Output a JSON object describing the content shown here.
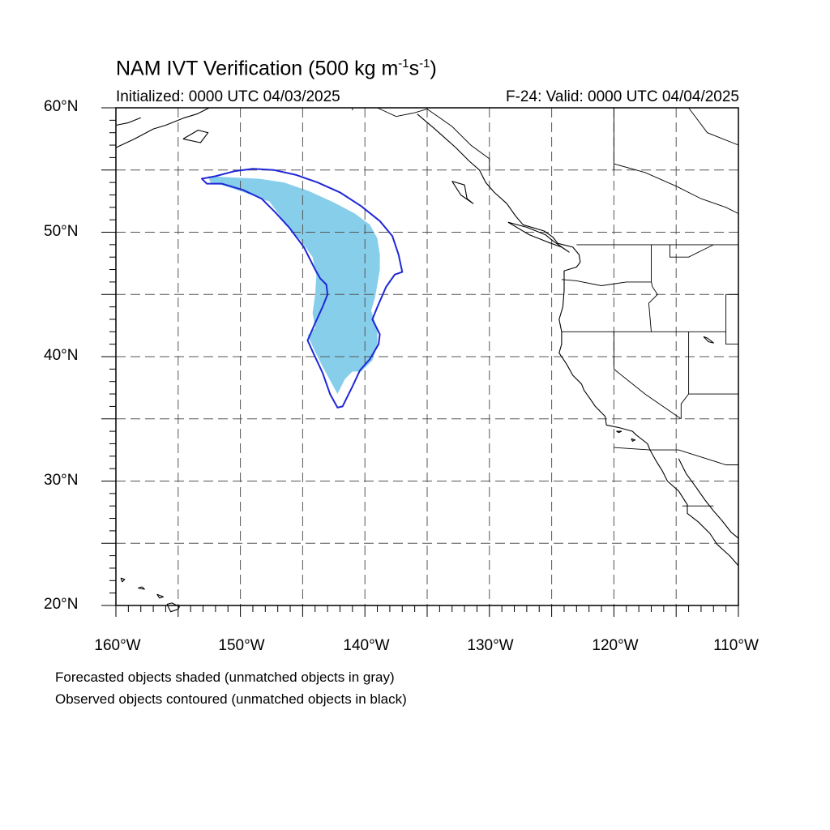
{
  "title": {
    "main": "NAM IVT Verification (500 kg m",
    "sup1": "-1",
    "mid": "s",
    "sup2": "-1",
    "end": ")"
  },
  "subtitle_left": "Initialized: 0000 UTC 04/03/2025",
  "subtitle_right": "F-24: Valid: 0000 UTC 04/04/2025",
  "lat_labels": [
    "60°N",
    "50°N",
    "40°N",
    "30°N",
    "20°N"
  ],
  "lon_labels": [
    "160°W",
    "150°W",
    "140°W",
    "130°W",
    "120°W",
    "110°W"
  ],
  "footnote_1": "Forecasted objects shaded (unmatched objects in gray)",
  "footnote_2": "Observed objects contoured (unmatched objects in black)",
  "map_extent": {
    "lon_min": -160,
    "lon_max": -110,
    "lat_min": 20,
    "lat_max": 60
  },
  "colors": {
    "forecast_fill": "#87ceeb",
    "observed_contour": "#1f27d6",
    "coastline": "#000000",
    "grid": "#555555"
  },
  "forecast_object": {
    "label": "",
    "outline_lonlat": [
      [
        -152.6,
        54.5
      ],
      [
        -150.5,
        54.4
      ],
      [
        -148.5,
        54.3
      ],
      [
        -146.5,
        54.0
      ],
      [
        -144.5,
        53.3
      ],
      [
        -142.5,
        52.4
      ],
      [
        -140.8,
        51.5
      ],
      [
        -139.6,
        50.6
      ],
      [
        -139.0,
        49.5
      ],
      [
        -138.8,
        48.2
      ],
      [
        -138.8,
        47.0
      ],
      [
        -139.0,
        45.8
      ],
      [
        -139.2,
        44.7
      ],
      [
        -139.5,
        43.7
      ],
      [
        -139.0,
        42.2
      ],
      [
        -139.0,
        40.9
      ],
      [
        -139.4,
        39.7
      ],
      [
        -140.3,
        38.8
      ],
      [
        -141.0,
        38.8
      ],
      [
        -141.6,
        38.2
      ],
      [
        -142.2,
        37.0
      ],
      [
        -142.8,
        38.1
      ],
      [
        -143.5,
        39.4
      ],
      [
        -144.0,
        40.4
      ],
      [
        -144.6,
        41.7
      ],
      [
        -144.0,
        42.3
      ],
      [
        -144.2,
        43.5
      ],
      [
        -144.0,
        45.0
      ],
      [
        -143.9,
        46.5
      ],
      [
        -144.2,
        48.0
      ],
      [
        -145.2,
        49.4
      ],
      [
        -146.3,
        50.6
      ],
      [
        -147.1,
        51.7
      ],
      [
        -147.7,
        52.5
      ],
      [
        -148.2,
        52.6
      ],
      [
        -148.8,
        52.9
      ],
      [
        -150.0,
        53.3
      ],
      [
        -151.5,
        53.8
      ],
      [
        -152.4,
        54.0
      ]
    ]
  },
  "observed_object": {
    "label": "",
    "outline_lonlat": [
      [
        -153.1,
        54.3
      ],
      [
        -152.0,
        54.5
      ],
      [
        -150.5,
        54.9
      ],
      [
        -149.0,
        55.1
      ],
      [
        -147.3,
        55.0
      ],
      [
        -145.5,
        54.6
      ],
      [
        -143.8,
        54.0
      ],
      [
        -142.0,
        53.2
      ],
      [
        -140.3,
        52.1
      ],
      [
        -138.8,
        50.9
      ],
      [
        -137.8,
        49.7
      ],
      [
        -137.3,
        48.2
      ],
      [
        -137.0,
        46.8
      ],
      [
        -137.6,
        46.6
      ],
      [
        -138.3,
        45.6
      ],
      [
        -139.0,
        44.0
      ],
      [
        -139.4,
        43.0
      ],
      [
        -138.8,
        41.8
      ],
      [
        -138.9,
        41.0
      ],
      [
        -139.6,
        39.8
      ],
      [
        -140.4,
        38.9
      ],
      [
        -141.0,
        37.6
      ],
      [
        -141.8,
        36.0
      ],
      [
        -142.2,
        35.9
      ],
      [
        -142.8,
        37.0
      ],
      [
        -143.4,
        38.7
      ],
      [
        -144.1,
        40.2
      ],
      [
        -144.6,
        41.3
      ],
      [
        -144.0,
        42.7
      ],
      [
        -143.4,
        44.0
      ],
      [
        -143.0,
        45.0
      ],
      [
        -143.1,
        45.8
      ],
      [
        -143.6,
        46.3
      ],
      [
        -144.0,
        47.0
      ],
      [
        -144.9,
        48.8
      ],
      [
        -146.1,
        50.4
      ],
      [
        -147.2,
        51.6
      ],
      [
        -148.3,
        52.7
      ],
      [
        -149.8,
        53.4
      ],
      [
        -151.5,
        53.9
      ],
      [
        -152.7,
        53.9
      ]
    ]
  },
  "coastlines": [
    [
      [
        -135.8,
        59.5
      ],
      [
        -135.2,
        59.0
      ],
      [
        -134.5,
        58.4
      ],
      [
        -133.6,
        57.6
      ],
      [
        -132.7,
        56.8
      ],
      [
        -131.6,
        55.7
      ],
      [
        -130.8,
        55.0
      ],
      [
        -130.3,
        54.0
      ],
      [
        -129.6,
        53.2
      ],
      [
        -128.6,
        52.3
      ],
      [
        -127.9,
        51.3
      ],
      [
        -127.3,
        50.6
      ],
      [
        -125.6,
        50.1
      ],
      [
        -124.9,
        49.6
      ],
      [
        -124.5,
        49.1
      ],
      [
        -123.3,
        48.8
      ],
      [
        -122.8,
        48.2
      ],
      [
        -122.7,
        47.6
      ],
      [
        -123.0,
        47.2
      ],
      [
        -124.0,
        46.9
      ],
      [
        -124.0,
        46.2
      ],
      [
        -124.0,
        45.3
      ],
      [
        -124.1,
        44.0
      ],
      [
        -124.4,
        43.0
      ],
      [
        -124.2,
        42.0
      ],
      [
        -124.2,
        41.0
      ],
      [
        -124.4,
        40.3
      ],
      [
        -123.8,
        39.4
      ],
      [
        -123.3,
        38.5
      ],
      [
        -122.6,
        37.8
      ],
      [
        -122.4,
        37.3
      ],
      [
        -121.9,
        36.6
      ],
      [
        -121.5,
        36.0
      ],
      [
        -120.7,
        35.2
      ],
      [
        -120.6,
        34.5
      ],
      [
        -119.6,
        34.3
      ],
      [
        -118.5,
        34.0
      ],
      [
        -118.2,
        33.7
      ],
      [
        -117.3,
        33.0
      ],
      [
        -117.1,
        32.5
      ],
      [
        -116.6,
        31.6
      ],
      [
        -116.1,
        30.8
      ],
      [
        -115.7,
        30.0
      ],
      [
        -114.8,
        29.2
      ],
      [
        -114.1,
        28.1
      ],
      [
        -114.1,
        27.4
      ],
      [
        -113.2,
        26.7
      ],
      [
        -112.3,
        25.8
      ],
      [
        -111.7,
        24.9
      ],
      [
        -110.7,
        24.0
      ],
      [
        -110.0,
        23.2
      ]
    ],
    [
      [
        -114.8,
        31.8
      ],
      [
        -114.2,
        30.6
      ],
      [
        -113.4,
        29.5
      ],
      [
        -112.7,
        28.5
      ],
      [
        -112.0,
        27.6
      ],
      [
        -111.3,
        26.8
      ],
      [
        -110.6,
        25.9
      ],
      [
        -110.0,
        25.4
      ]
    ],
    [
      [
        -155.9,
        20.1
      ],
      [
        -155.6,
        19.5
      ],
      [
        -155.0,
        19.7
      ],
      [
        -154.9,
        19.9
      ],
      [
        -155.5,
        20.2
      ],
      [
        -155.9,
        20.1
      ]
    ],
    [
      [
        -156.7,
        20.9
      ],
      [
        -156.2,
        20.7
      ],
      [
        -156.5,
        20.6
      ],
      [
        -156.7,
        20.9
      ]
    ],
    [
      [
        -157.9,
        21.5
      ],
      [
        -157.7,
        21.3
      ],
      [
        -158.2,
        21.4
      ],
      [
        -157.9,
        21.5
      ]
    ],
    [
      [
        -159.6,
        22.2
      ],
      [
        -159.3,
        22.1
      ],
      [
        -159.5,
        21.9
      ],
      [
        -159.6,
        22.2
      ]
    ],
    [
      [
        -160.0,
        56.8
      ],
      [
        -158.5,
        57.5
      ],
      [
        -157.0,
        58.3
      ],
      [
        -156.0,
        58.6
      ],
      [
        -154.5,
        59.2
      ],
      [
        -153.5,
        59.5
      ],
      [
        -152.5,
        60.0
      ]
    ],
    [
      [
        -160.0,
        58.6
      ],
      [
        -159.0,
        58.8
      ],
      [
        -158.0,
        59.2
      ]
    ],
    [
      [
        -154.6,
        57.5
      ],
      [
        -153.4,
        58.2
      ],
      [
        -152.6,
        58.0
      ],
      [
        -153.2,
        57.2
      ],
      [
        -154.6,
        57.5
      ]
    ],
    [
      [
        -133.0,
        54.1
      ],
      [
        -132.0,
        53.8
      ],
      [
        -131.8,
        52.7
      ],
      [
        -131.3,
        52.3
      ],
      [
        -132.3,
        53.0
      ],
      [
        -133.0,
        54.1
      ]
    ],
    [
      [
        -128.5,
        50.8
      ],
      [
        -127.0,
        50.4
      ],
      [
        -125.5,
        49.8
      ],
      [
        -124.9,
        49.3
      ],
      [
        -123.6,
        48.4
      ],
      [
        -124.2,
        48.8
      ],
      [
        -125.3,
        49.2
      ],
      [
        -126.8,
        49.8
      ],
      [
        -128.5,
        50.8
      ]
    ],
    [
      [
        -112.8,
        41.6
      ],
      [
        -112.4,
        41.2
      ],
      [
        -112.0,
        41.1
      ],
      [
        -112.5,
        41.5
      ],
      [
        -112.8,
        41.6
      ]
    ],
    [
      [
        -118.6,
        33.4
      ],
      [
        -118.3,
        33.3
      ],
      [
        -118.5,
        33.2
      ],
      [
        -118.6,
        33.4
      ]
    ],
    [
      [
        -119.8,
        34.0
      ],
      [
        -119.4,
        34.0
      ],
      [
        -119.6,
        33.9
      ],
      [
        -119.8,
        34.0
      ]
    ]
  ],
  "borders": [
    [
      [
        -141.0,
        60.0
      ],
      [
        -141.0,
        59.8
      ]
    ],
    [
      [
        -139.0,
        60.0
      ],
      [
        -137.5,
        59.3
      ],
      [
        -136.0,
        59.6
      ],
      [
        -135.0,
        59.9
      ],
      [
        -134.0,
        59.2
      ],
      [
        -133.0,
        58.5
      ],
      [
        -131.5,
        57.0
      ],
      [
        -130.0,
        55.9
      ],
      [
        -130.0,
        55.0
      ]
    ],
    [
      [
        -123.0,
        49.0
      ],
      [
        -117.0,
        49.0
      ],
      [
        -110.0,
        49.0
      ]
    ],
    [
      [
        -117.0,
        49.0
      ],
      [
        -117.0,
        46.0
      ],
      [
        -116.9,
        45.6
      ],
      [
        -116.5,
        45.0
      ],
      [
        -117.2,
        44.3
      ],
      [
        -117.0,
        42.0
      ]
    ],
    [
      [
        -124.2,
        46.2
      ],
      [
        -123.0,
        46.1
      ],
      [
        -121.0,
        45.7
      ],
      [
        -119.0,
        46.0
      ],
      [
        -117.0,
        46.0
      ]
    ],
    [
      [
        -124.2,
        42.0
      ],
      [
        -120.0,
        42.0
      ],
      [
        -117.0,
        42.0
      ],
      [
        -114.0,
        42.0
      ],
      [
        -111.0,
        42.0
      ]
    ],
    [
      [
        -120.0,
        42.0
      ],
      [
        -120.0,
        39.0
      ],
      [
        -117.5,
        37.0
      ],
      [
        -114.6,
        35.0
      ]
    ],
    [
      [
        -114.0,
        42.0
      ],
      [
        -114.0,
        37.0
      ],
      [
        -114.6,
        36.2
      ],
      [
        -114.6,
        35.0
      ]
    ],
    [
      [
        -114.0,
        37.0
      ],
      [
        -110.0,
        37.0
      ]
    ],
    [
      [
        -111.0,
        45.0
      ],
      [
        -110.0,
        45.0
      ]
    ],
    [
      [
        -111.0,
        45.0
      ],
      [
        -111.0,
        41.0
      ],
      [
        -110.0,
        41.0
      ]
    ],
    [
      [
        -115.5,
        49.0
      ],
      [
        -115.5,
        48.0
      ],
      [
        -114.0,
        48.0
      ],
      [
        -112.0,
        49.0
      ]
    ],
    [
      [
        -120.0,
        32.7
      ],
      [
        -117.1,
        32.5
      ],
      [
        -114.8,
        32.5
      ],
      [
        -111.0,
        31.3
      ],
      [
        -110.0,
        31.3
      ]
    ],
    [
      [
        -120.0,
        55.0
      ],
      [
        -120.0,
        60.0
      ]
    ],
    [
      [
        -120.0,
        55.5
      ],
      [
        -117.5,
        54.8
      ],
      [
        -115.0,
        53.7
      ],
      [
        -113.0,
        52.7
      ],
      [
        -111.0,
        52.0
      ],
      [
        -110.0,
        51.5
      ]
    ],
    [
      [
        -114.0,
        60.0
      ],
      [
        -112.5,
        58.0
      ],
      [
        -110.0,
        57.0
      ]
    ],
    [
      [
        -114.5,
        28.0
      ],
      [
        -113.3,
        28.0
      ],
      [
        -112.0,
        28.0
      ]
    ]
  ]
}
